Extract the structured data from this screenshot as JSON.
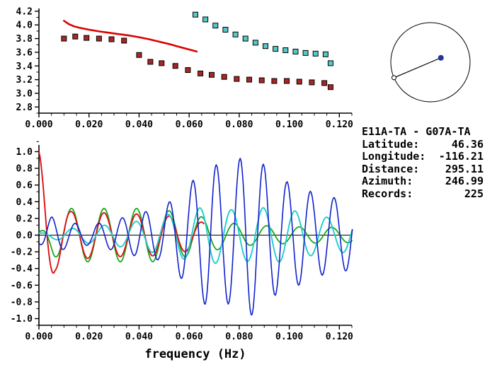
{
  "station_info": {
    "title": "E11A-TA - G07A-TA",
    "rows": [
      {
        "label": "Latitude:",
        "value": "46.36"
      },
      {
        "label": "Longitude:",
        "value": "-116.21"
      },
      {
        "label": "Distance:",
        "value": "295.11"
      },
      {
        "label": "Azimuth:",
        "value": "246.99"
      },
      {
        "label": "Records:",
        "value": "225"
      }
    ]
  },
  "map": {
    "azimuth_deg": 246.99,
    "circle_color": "#000000",
    "line_color": "#000000",
    "station_dot_color": "#223399",
    "endpoint_marker": "open-circle"
  },
  "chart_data": [
    {
      "type": "scatter",
      "title": "",
      "xlabel": "",
      "ylabel": "",
      "xlim": [
        0,
        0.125
      ],
      "ylim": [
        2.71,
        4.24
      ],
      "xminor_step": 0.005,
      "yminor_step": 0.1,
      "grid": false,
      "xticks": [
        {
          "v": 0.0,
          "label": "0.000"
        },
        {
          "v": 0.02,
          "label": "0.020"
        },
        {
          "v": 0.04,
          "label": "0.040"
        },
        {
          "v": 0.06,
          "label": "0.060"
        },
        {
          "v": 0.08,
          "label": "0.080"
        },
        {
          "v": 0.1,
          "label": "0.100"
        },
        {
          "v": 0.12,
          "label": "0.120"
        }
      ],
      "yticks": [
        {
          "v": 2.8,
          "label": "2.8"
        },
        {
          "v": 3.0,
          "label": "3.0"
        },
        {
          "v": 3.2,
          "label": "3.2"
        },
        {
          "v": 3.4,
          "label": "3.4"
        },
        {
          "v": 3.6,
          "label": "3.6"
        },
        {
          "v": 3.8,
          "label": "3.8"
        },
        {
          "v": 4.0,
          "label": "4.0"
        },
        {
          "v": 4.2,
          "label": "4.2"
        }
      ],
      "series": [
        {
          "name": "reference-curve",
          "style": "line",
          "color": "#dd0000",
          "width": 2.6,
          "points": [
            [
              0.01,
              4.06
            ],
            [
              0.012,
              4.01
            ],
            [
              0.014,
              3.98
            ],
            [
              0.016,
              3.96
            ],
            [
              0.018,
              3.945
            ],
            [
              0.02,
              3.93
            ],
            [
              0.024,
              3.905
            ],
            [
              0.028,
              3.885
            ],
            [
              0.032,
              3.865
            ],
            [
              0.036,
              3.845
            ],
            [
              0.04,
              3.82
            ],
            [
              0.044,
              3.79
            ],
            [
              0.048,
              3.755
            ],
            [
              0.052,
              3.72
            ],
            [
              0.056,
              3.68
            ],
            [
              0.06,
              3.64
            ],
            [
              0.063,
              3.61
            ]
          ]
        },
        {
          "name": "measured-dispersion-fundamental",
          "style": "scatter",
          "marker": "square",
          "color": "#aa2626",
          "edge": "#000000",
          "points": [
            [
              0.01,
              3.8
            ],
            [
              0.0145,
              3.83
            ],
            [
              0.019,
              3.81
            ],
            [
              0.024,
              3.8
            ],
            [
              0.029,
              3.79
            ],
            [
              0.034,
              3.77
            ],
            [
              0.04,
              3.56
            ],
            [
              0.0445,
              3.46
            ],
            [
              0.049,
              3.44
            ],
            [
              0.0545,
              3.4
            ],
            [
              0.0595,
              3.34
            ],
            [
              0.0645,
              3.29
            ],
            [
              0.069,
              3.27
            ],
            [
              0.074,
              3.24
            ],
            [
              0.079,
              3.21
            ],
            [
              0.084,
              3.2
            ],
            [
              0.089,
              3.19
            ],
            [
              0.094,
              3.18
            ],
            [
              0.099,
              3.18
            ],
            [
              0.104,
              3.17
            ],
            [
              0.109,
              3.16
            ],
            [
              0.114,
              3.15
            ],
            [
              0.1165,
              3.09
            ]
          ]
        },
        {
          "name": "measured-dispersion-branch2",
          "style": "scatter",
          "marker": "square",
          "color": "#55c8c8",
          "edge": "#000000",
          "points": [
            [
              0.0625,
              4.15
            ],
            [
              0.0665,
              4.08
            ],
            [
              0.0705,
              3.99
            ],
            [
              0.0745,
              3.93
            ],
            [
              0.0785,
              3.86
            ],
            [
              0.0825,
              3.8
            ],
            [
              0.0865,
              3.74
            ],
            [
              0.0905,
              3.69
            ],
            [
              0.0945,
              3.65
            ],
            [
              0.0985,
              3.63
            ],
            [
              0.1025,
              3.61
            ],
            [
              0.1065,
              3.59
            ],
            [
              0.1105,
              3.58
            ],
            [
              0.1145,
              3.57
            ],
            [
              0.1165,
              3.44
            ]
          ]
        }
      ]
    },
    {
      "type": "line",
      "title": "",
      "xlabel": "frequency (Hz)",
      "ylabel": "",
      "xlim": [
        0,
        0.125
      ],
      "ylim": [
        -1.08,
        1.08
      ],
      "xminor_step": 0.005,
      "yminor_step": 0.1,
      "zero_line": true,
      "grid": false,
      "xticks": [
        {
          "v": 0.0,
          "label": "0.000"
        },
        {
          "v": 0.02,
          "label": "0.020"
        },
        {
          "v": 0.04,
          "label": "0.040"
        },
        {
          "v": 0.06,
          "label": "0.060"
        },
        {
          "v": 0.08,
          "label": "0.080"
        },
        {
          "v": 0.1,
          "label": "0.100"
        },
        {
          "v": 0.12,
          "label": "0.120"
        }
      ],
      "yticks": [
        {
          "v": 1.0,
          "label": "1.0"
        },
        {
          "v": 0.8,
          "label": "0.8"
        },
        {
          "v": 0.6,
          "label": "0.6"
        },
        {
          "v": 0.4,
          "label": "0.4"
        },
        {
          "v": 0.2,
          "label": "0.2"
        },
        {
          "v": 0.0,
          "label": "0.0"
        },
        {
          "v": -0.2,
          "label": "-0.2"
        },
        {
          "v": -0.4,
          "label": "-0.4"
        },
        {
          "v": -0.6,
          "label": "-0.6"
        },
        {
          "v": -0.8,
          "label": "-0.8"
        },
        {
          "v": -1.0,
          "label": "-1.0"
        }
      ],
      "series": [
        {
          "name": "waveform-green",
          "style": "waveform",
          "color": "#18a818",
          "width": 1.8,
          "period": 0.013,
          "phase_deg": 0,
          "xmax": 0.125,
          "envelope": [
            [
              0,
              0.03
            ],
            [
              0.003,
              0.12
            ],
            [
              0.006,
              0.25
            ],
            [
              0.01,
              0.32
            ],
            [
              0.045,
              0.32
            ],
            [
              0.055,
              0.28
            ],
            [
              0.065,
              0.22
            ],
            [
              0.075,
              0.15
            ],
            [
              0.085,
              0.12
            ],
            [
              0.1,
              0.1
            ],
            [
              0.125,
              0.09
            ]
          ]
        },
        {
          "name": "waveform-red",
          "style": "waveform",
          "color": "#dd1111",
          "width": 1.9,
          "period": 0.013,
          "phase_deg": 0,
          "xmax": 0.066,
          "envelope": [
            [
              0,
              1.0
            ],
            [
              0.0065,
              0.42
            ],
            [
              0.013,
              0.28
            ],
            [
              0.02,
              0.28
            ],
            [
              0.03,
              0.26
            ],
            [
              0.045,
              0.25
            ],
            [
              0.055,
              0.22
            ],
            [
              0.066,
              0.15
            ]
          ]
        },
        {
          "name": "waveform-cyan",
          "style": "waveform",
          "color": "#22cccc",
          "width": 1.9,
          "period": 0.0127,
          "phase_deg": 20,
          "xmax": 0.125,
          "envelope": [
            [
              0,
              0.02
            ],
            [
              0.01,
              0.07
            ],
            [
              0.02,
              0.1
            ],
            [
              0.03,
              0.13
            ],
            [
              0.04,
              0.17
            ],
            [
              0.05,
              0.24
            ],
            [
              0.06,
              0.3
            ],
            [
              0.068,
              0.35
            ],
            [
              0.078,
              0.3
            ],
            [
              0.088,
              0.33
            ],
            [
              0.098,
              0.32
            ],
            [
              0.108,
              0.25
            ],
            [
              0.118,
              0.2
            ],
            [
              0.125,
              0.22
            ]
          ]
        },
        {
          "name": "waveform-blue",
          "style": "waveform",
          "color": "#1122cc",
          "width": 1.6,
          "period": 0.0094,
          "phase_deg": 195,
          "xmax": 0.125,
          "envelope": [
            [
              0,
              0.1
            ],
            [
              0.005,
              0.22
            ],
            [
              0.012,
              0.15
            ],
            [
              0.02,
              0.12
            ],
            [
              0.028,
              0.17
            ],
            [
              0.035,
              0.22
            ],
            [
              0.042,
              0.28
            ],
            [
              0.048,
              0.3
            ],
            [
              0.053,
              0.42
            ],
            [
              0.058,
              0.55
            ],
            [
              0.063,
              0.7
            ],
            [
              0.068,
              0.9
            ],
            [
              0.073,
              0.8
            ],
            [
              0.078,
              0.85
            ],
            [
              0.083,
              1.0
            ],
            [
              0.088,
              0.9
            ],
            [
              0.093,
              0.75
            ],
            [
              0.098,
              0.65
            ],
            [
              0.104,
              0.6
            ],
            [
              0.11,
              0.5
            ],
            [
              0.118,
              0.45
            ],
            [
              0.125,
              0.42
            ]
          ]
        }
      ]
    }
  ]
}
